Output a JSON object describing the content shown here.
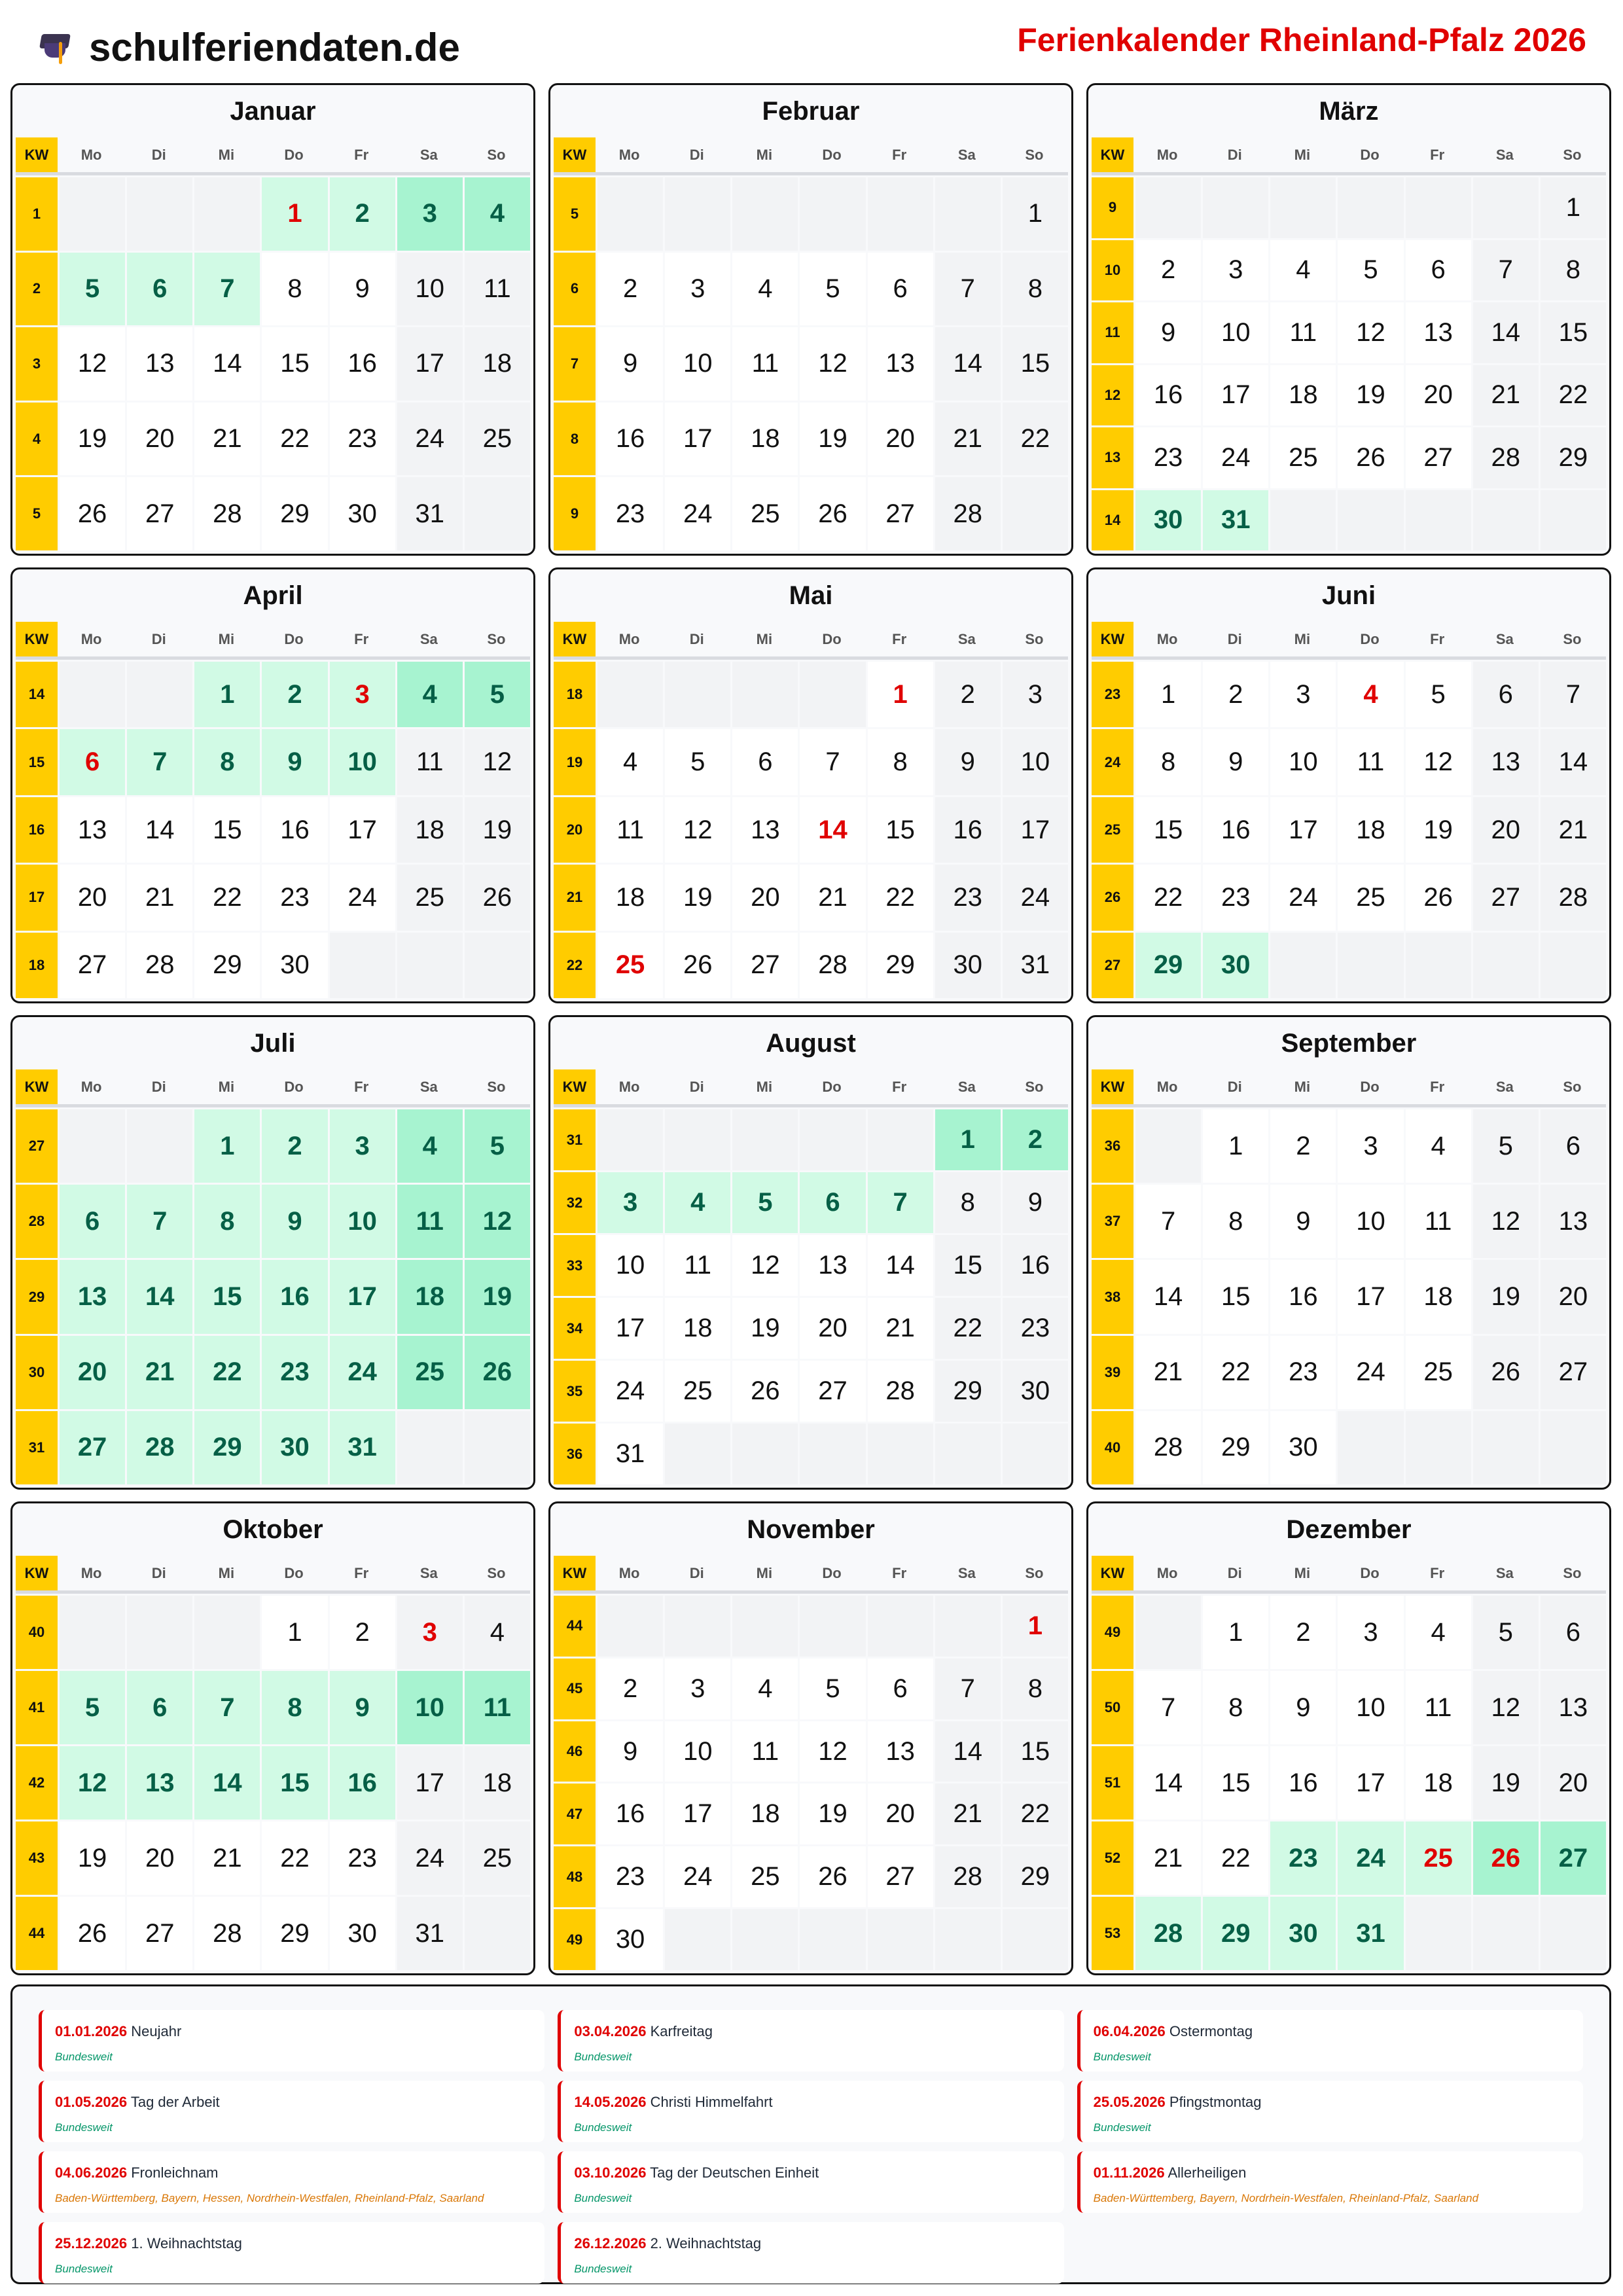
{
  "header": {
    "logo_text": "schulferiendaten.de",
    "logo_icon": "graduation-cap-icon",
    "title": "Ferienkalender Rheinland-Pfalz 2026"
  },
  "year": 2026,
  "weekday_header": {
    "kw": "KW",
    "days": [
      "Mo",
      "Di",
      "Mi",
      "Do",
      "Fr",
      "Sa",
      "So"
    ]
  },
  "colors": {
    "accent_red": "#e00000",
    "kw_yellow": "#ffcc00",
    "ferien": "#d1fae5",
    "ferien_weekend": "#a7f3d0",
    "ferien_text": "#065f46"
  },
  "months": [
    {
      "name": "Januar",
      "kw": [
        1,
        2,
        3,
        4,
        5
      ],
      "ferien": [
        1,
        2,
        3,
        4,
        5,
        6,
        7
      ],
      "holidays": [
        1
      ]
    },
    {
      "name": "Februar",
      "kw": [
        5,
        6,
        7,
        8,
        9
      ],
      "ferien": [],
      "holidays": []
    },
    {
      "name": "März",
      "kw": [
        9,
        10,
        11,
        12,
        13,
        14
      ],
      "ferien": [
        30,
        31
      ],
      "holidays": []
    },
    {
      "name": "April",
      "kw": [
        14,
        15,
        16,
        17,
        18
      ],
      "ferien": [
        1,
        2,
        3,
        4,
        5,
        6,
        7,
        8,
        9,
        10
      ],
      "holidays": [
        3,
        6
      ]
    },
    {
      "name": "Mai",
      "kw": [
        18,
        19,
        20,
        21,
        22
      ],
      "ferien": [],
      "holidays": [
        1,
        14,
        25
      ]
    },
    {
      "name": "Juni",
      "kw": [
        23,
        24,
        25,
        26,
        27
      ],
      "ferien": [
        29,
        30
      ],
      "holidays": [
        4
      ]
    },
    {
      "name": "Juli",
      "kw": [
        27,
        28,
        29,
        30,
        31
      ],
      "ferien": [
        1,
        2,
        3,
        4,
        5,
        6,
        7,
        8,
        9,
        10,
        11,
        12,
        13,
        14,
        15,
        16,
        17,
        18,
        19,
        20,
        21,
        22,
        23,
        24,
        25,
        26,
        27,
        28,
        29,
        30,
        31
      ],
      "holidays": []
    },
    {
      "name": "August",
      "kw": [
        31,
        32,
        33,
        34,
        35,
        36
      ],
      "ferien": [
        1,
        2,
        3,
        4,
        5,
        6,
        7
      ],
      "holidays": []
    },
    {
      "name": "September",
      "kw": [
        36,
        37,
        38,
        39,
        40
      ],
      "ferien": [],
      "holidays": []
    },
    {
      "name": "Oktober",
      "kw": [
        40,
        41,
        42,
        43,
        44
      ],
      "ferien": [
        5,
        6,
        7,
        8,
        9,
        10,
        11,
        12,
        13,
        14,
        15,
        16
      ],
      "holidays": [
        3
      ]
    },
    {
      "name": "November",
      "kw": [
        44,
        45,
        46,
        47,
        48,
        49
      ],
      "ferien": [],
      "holidays": [
        1
      ]
    },
    {
      "name": "Dezember",
      "kw": [
        49,
        50,
        51,
        52,
        53
      ],
      "ferien": [
        23,
        24,
        25,
        26,
        27,
        28,
        29,
        30,
        31
      ],
      "holidays": [
        25,
        26
      ]
    }
  ],
  "holidays": [
    {
      "date": "01.01.2026",
      "name": "Neujahr",
      "region": "Bundesweit",
      "nationwide": true
    },
    {
      "date": "03.04.2026",
      "name": "Karfreitag",
      "region": "Bundesweit",
      "nationwide": true
    },
    {
      "date": "06.04.2026",
      "name": "Ostermontag",
      "region": "Bundesweit",
      "nationwide": true
    },
    {
      "date": "01.05.2026",
      "name": "Tag der Arbeit",
      "region": "Bundesweit",
      "nationwide": true
    },
    {
      "date": "14.05.2026",
      "name": "Christi Himmelfahrt",
      "region": "Bundesweit",
      "nationwide": true
    },
    {
      "date": "25.05.2026",
      "name": "Pfingstmontag",
      "region": "Bundesweit",
      "nationwide": true
    },
    {
      "date": "04.06.2026",
      "name": "Fronleichnam",
      "region": "Baden-Württemberg, Bayern, Hessen, Nordrhein-Westfalen, Rheinland-Pfalz, Saarland",
      "nationwide": false
    },
    {
      "date": "03.10.2026",
      "name": "Tag der Deutschen Einheit",
      "region": "Bundesweit",
      "nationwide": true
    },
    {
      "date": "01.11.2026",
      "name": "Allerheiligen",
      "region": "Baden-Württemberg, Bayern, Nordrhein-Westfalen, Rheinland-Pfalz, Saarland",
      "nationwide": false
    },
    {
      "date": "25.12.2026",
      "name": "1. Weihnachtstag",
      "region": "Bundesweit",
      "nationwide": true
    },
    {
      "date": "26.12.2026",
      "name": "2. Weihnachtstag",
      "region": "Bundesweit",
      "nationwide": true
    }
  ]
}
